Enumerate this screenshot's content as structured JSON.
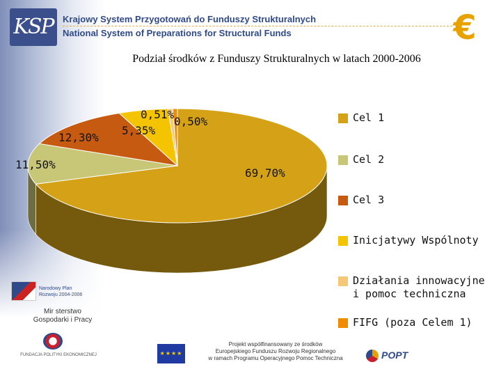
{
  "header": {
    "logo_text": "KSP",
    "line1": "Krajowy System Przygotowań do Funduszy Strukturalnych",
    "line2": "National System of Preparations for Structural Funds",
    "currency_icon": "euro-icon"
  },
  "chart_data": {
    "type": "pie",
    "title": "Podział środków z Funduszy Strukturalnych w latach 2000-2006",
    "series": [
      {
        "name": "Cel 1",
        "value": 69.7,
        "label": "69,70%",
        "color": "#d4a117"
      },
      {
        "name": "Cel 2",
        "value": 11.5,
        "label": "11,50%",
        "color": "#c8c778"
      },
      {
        "name": "Cel 3",
        "value": 12.3,
        "label": "12,30%",
        "color": "#c65a10"
      },
      {
        "name": "Inicjatywy Wspólnoty",
        "value": 5.35,
        "label": "5,35%",
        "color": "#f5c400"
      },
      {
        "name": "Działania innowacyjne\ni pomoc techniczna",
        "value": 0.51,
        "label": "0,51%",
        "color": "#f5c878"
      },
      {
        "name": "FIFG (poza Celem 1)",
        "value": 0.5,
        "label": "0,50%",
        "color": "#f08c00"
      }
    ],
    "style": "3d",
    "legend": "right"
  },
  "footer": {
    "npr_text": "Narodowy Plan\nRozwoju 2004-2006",
    "ministry_text": "Mir sterstwo\nGospodarki i Pracy",
    "fundacja_text": "FUNDACJA POLITYKI EKONOMICZNEJ",
    "eu_flag_stars": "★★★★",
    "project_text": "Projekt współfinansowany ze środków\nEuropejskiego Funduszu Rozwoju Regionalnego\nw ramach Programu Operacyjnego Pomoc Techniczna",
    "popt_text": "POPT"
  }
}
